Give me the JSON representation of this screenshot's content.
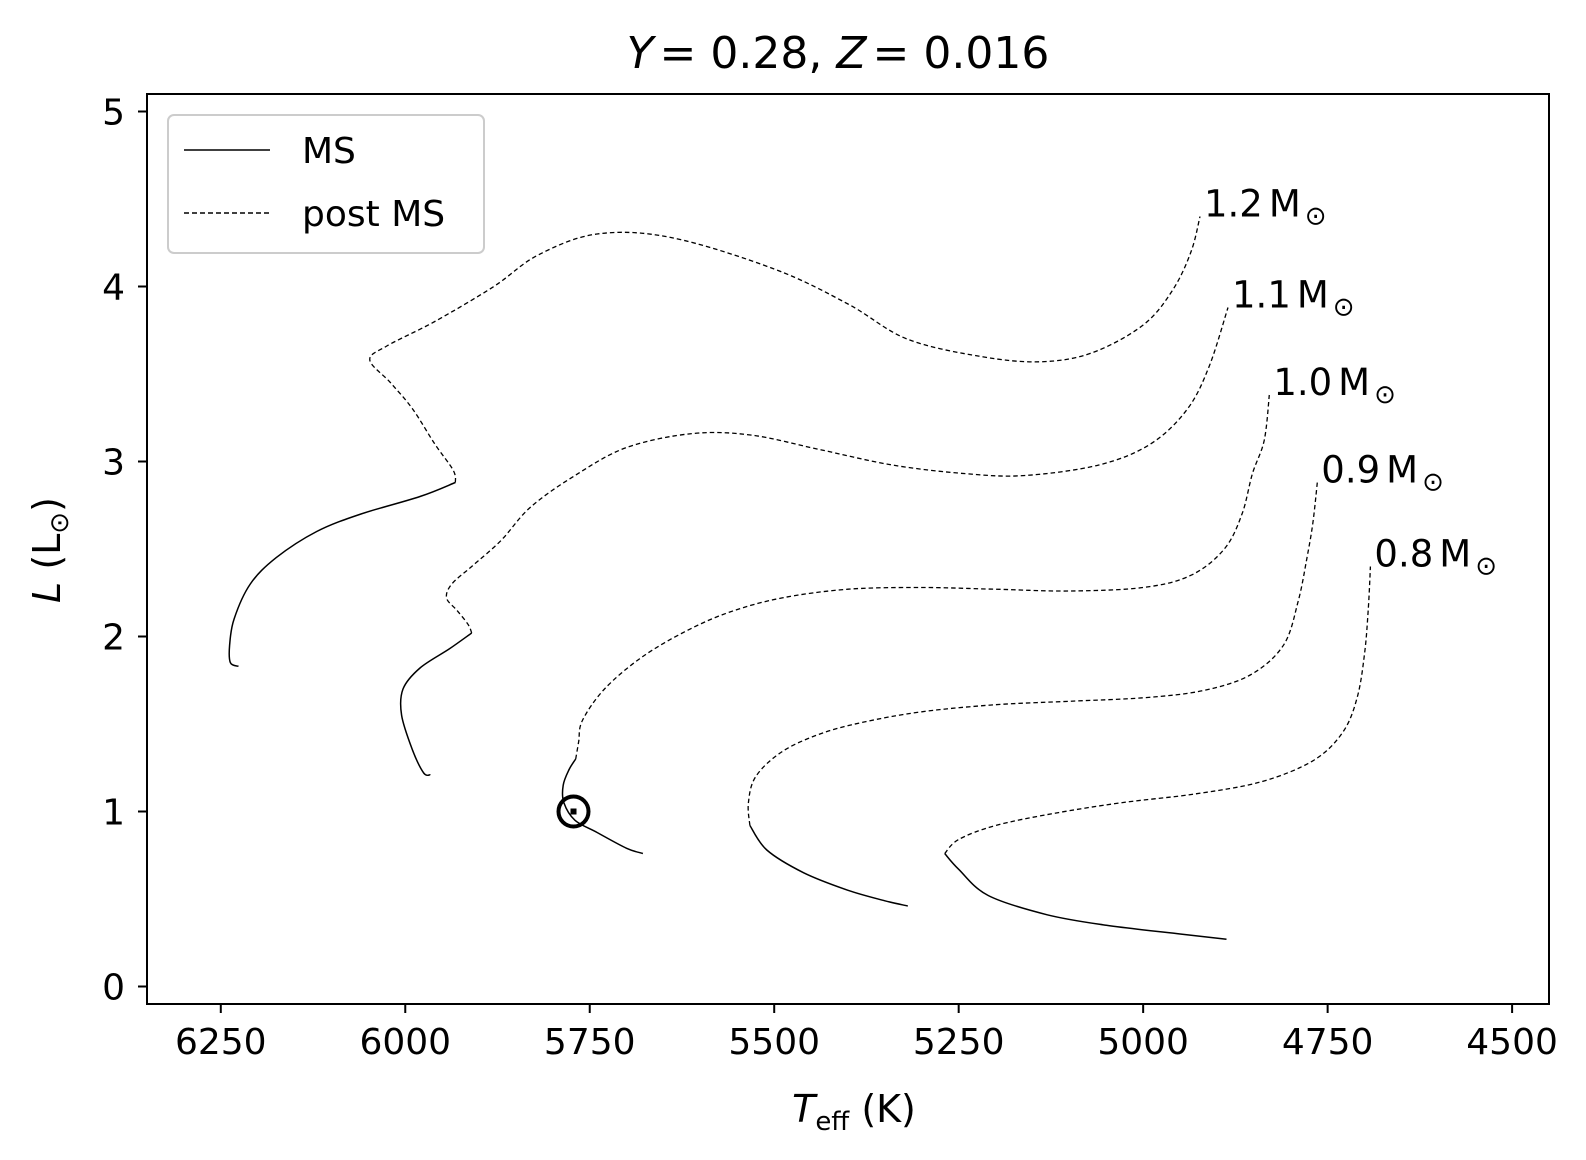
{
  "chart_data": {
    "type": "line",
    "title": {
      "y_sym": "Y",
      "y_val": "= 0.28, ",
      "z_sym": "Z",
      "z_val": "= 0.016"
    },
    "xlabel": {
      "main": "T",
      "sub": "eff",
      "unit": " (K)"
    },
    "ylabel": {
      "main": "L",
      "unit_open": " (L",
      "sun": "⊙",
      "unit_close": ")"
    },
    "xlim": [
      6350,
      4450
    ],
    "ylim": [
      -0.1,
      5.1
    ],
    "x_ticks": [
      "6250",
      "6000",
      "5750",
      "5500",
      "5250",
      "5000",
      "4750",
      "4500"
    ],
    "x_tick_values": [
      6250,
      6000,
      5750,
      5500,
      5250,
      5000,
      4750,
      4500
    ],
    "y_ticks": [
      "0",
      "1",
      "2",
      "3",
      "4",
      "5"
    ],
    "y_tick_values": [
      0,
      1,
      2,
      3,
      4,
      5
    ],
    "grid": false,
    "legend_position": "top-left",
    "legend": [
      {
        "label": "MS",
        "style": "solid"
      },
      {
        "label": "post MS",
        "style": "dashed"
      }
    ],
    "sun_marker": {
      "teff": 5772,
      "L": 1.0,
      "symbol": "⊙"
    },
    "series": [
      {
        "name": "1.2 M⊙",
        "label_mass": "1.2",
        "label_unit": "M",
        "ms": [
          [
            6226,
            1.83
          ],
          [
            6237,
            1.85
          ],
          [
            6238,
            1.95
          ],
          [
            6232,
            2.1
          ],
          [
            6210,
            2.3
          ],
          [
            6175,
            2.45
          ],
          [
            6120,
            2.6
          ],
          [
            6060,
            2.7
          ],
          [
            5980,
            2.8
          ],
          [
            5932,
            2.88
          ]
        ],
        "post": [
          [
            5932,
            2.88
          ],
          [
            5935,
            2.95
          ],
          [
            5960,
            3.1
          ],
          [
            5990,
            3.3
          ],
          [
            6020,
            3.45
          ],
          [
            6048,
            3.58
          ],
          [
            6025,
            3.66
          ],
          [
            5960,
            3.8
          ],
          [
            5880,
            4.0
          ],
          [
            5820,
            4.18
          ],
          [
            5740,
            4.3
          ],
          [
            5640,
            4.28
          ],
          [
            5500,
            4.1
          ],
          [
            5400,
            3.9
          ],
          [
            5320,
            3.7
          ],
          [
            5220,
            3.6
          ],
          [
            5140,
            3.57
          ],
          [
            5070,
            3.62
          ],
          [
            5000,
            3.78
          ],
          [
            4960,
            3.98
          ],
          [
            4935,
            4.2
          ],
          [
            4923,
            4.4
          ]
        ]
      },
      {
        "name": "1.1 M⊙",
        "label_mass": "1.1",
        "label_unit": "M",
        "ms": [
          [
            5966,
            1.21
          ],
          [
            5975,
            1.22
          ],
          [
            5990,
            1.35
          ],
          [
            6005,
            1.55
          ],
          [
            6003,
            1.7
          ],
          [
            5980,
            1.82
          ],
          [
            5940,
            1.93
          ],
          [
            5910,
            2.02
          ]
        ],
        "post": [
          [
            5910,
            2.02
          ],
          [
            5915,
            2.07
          ],
          [
            5930,
            2.15
          ],
          [
            5944,
            2.22
          ],
          [
            5937,
            2.3
          ],
          [
            5910,
            2.4
          ],
          [
            5870,
            2.55
          ],
          [
            5830,
            2.74
          ],
          [
            5770,
            2.92
          ],
          [
            5700,
            3.08
          ],
          [
            5610,
            3.16
          ],
          [
            5530,
            3.15
          ],
          [
            5440,
            3.07
          ],
          [
            5340,
            2.98
          ],
          [
            5240,
            2.93
          ],
          [
            5160,
            2.92
          ],
          [
            5060,
            2.98
          ],
          [
            4990,
            3.1
          ],
          [
            4940,
            3.3
          ],
          [
            4910,
            3.55
          ],
          [
            4885,
            3.88
          ]
        ]
      },
      {
        "name": "1.0 M⊙",
        "label_mass": "1.0",
        "label_unit": "M",
        "ms": [
          [
            5678,
            0.76
          ],
          [
            5700,
            0.79
          ],
          [
            5740,
            0.88
          ],
          [
            5770,
            0.95
          ],
          [
            5785,
            1.05
          ],
          [
            5786,
            1.15
          ],
          [
            5778,
            1.24
          ],
          [
            5769,
            1.3
          ]
        ],
        "post": [
          [
            5769,
            1.3
          ],
          [
            5765,
            1.4
          ],
          [
            5760,
            1.52
          ],
          [
            5730,
            1.7
          ],
          [
            5680,
            1.88
          ],
          [
            5620,
            2.03
          ],
          [
            5560,
            2.14
          ],
          [
            5490,
            2.22
          ],
          [
            5400,
            2.27
          ],
          [
            5300,
            2.28
          ],
          [
            5200,
            2.27
          ],
          [
            5100,
            2.26
          ],
          [
            5000,
            2.28
          ],
          [
            4935,
            2.35
          ],
          [
            4890,
            2.5
          ],
          [
            4866,
            2.7
          ],
          [
            4852,
            2.93
          ],
          [
            4836,
            3.12
          ],
          [
            4829,
            3.38
          ]
        ]
      },
      {
        "name": "0.9 M⊙",
        "label_mass": "0.9",
        "label_unit": "M",
        "ms": [
          [
            5319,
            0.46
          ],
          [
            5350,
            0.49
          ],
          [
            5400,
            0.55
          ],
          [
            5460,
            0.65
          ],
          [
            5510,
            0.78
          ],
          [
            5533,
            0.92
          ]
        ],
        "post": [
          [
            5533,
            0.92
          ],
          [
            5535,
            1.05
          ],
          [
            5525,
            1.2
          ],
          [
            5490,
            1.34
          ],
          [
            5440,
            1.44
          ],
          [
            5380,
            1.51
          ],
          [
            5300,
            1.57
          ],
          [
            5200,
            1.61
          ],
          [
            5100,
            1.63
          ],
          [
            5000,
            1.65
          ],
          [
            4920,
            1.69
          ],
          [
            4855,
            1.78
          ],
          [
            4810,
            1.95
          ],
          [
            4790,
            2.2
          ],
          [
            4778,
            2.45
          ],
          [
            4770,
            2.65
          ],
          [
            4764,
            2.88
          ]
        ]
      },
      {
        "name": "0.8 M⊙",
        "label_mass": "0.8",
        "label_unit": "M",
        "ms": [
          [
            4887,
            0.27
          ],
          [
            4950,
            0.3
          ],
          [
            5050,
            0.35
          ],
          [
            5130,
            0.41
          ],
          [
            5210,
            0.52
          ],
          [
            5250,
            0.67
          ],
          [
            5269,
            0.76
          ]
        ],
        "post": [
          [
            5269,
            0.76
          ],
          [
            5250,
            0.84
          ],
          [
            5200,
            0.92
          ],
          [
            5120,
            0.99
          ],
          [
            5030,
            1.05
          ],
          [
            4930,
            1.1
          ],
          [
            4840,
            1.17
          ],
          [
            4770,
            1.29
          ],
          [
            4730,
            1.45
          ],
          [
            4710,
            1.65
          ],
          [
            4700,
            1.9
          ],
          [
            4695,
            2.15
          ],
          [
            4692,
            2.4
          ]
        ]
      }
    ]
  }
}
